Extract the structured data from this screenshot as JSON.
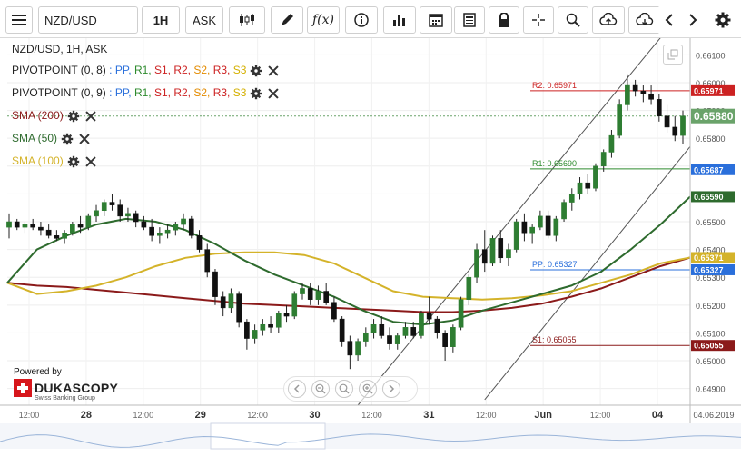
{
  "toolbar": {
    "instrument": "NZD/USD",
    "timeframe": "1H",
    "side": "ASK"
  },
  "chart_data": {
    "type": "candlestick",
    "title": "NZD/USD, 1H, ASK",
    "y_range": [
      0.6484,
      0.6616
    ],
    "y_ticks": [
      "0.66100",
      "0.66000",
      "0.65900",
      "0.65800",
      "0.65700",
      "0.65600",
      "0.65500",
      "0.65400",
      "0.65300",
      "0.65200",
      "0.65100",
      "0.65000",
      "0.64900"
    ],
    "x_ticks": [
      "12:00",
      "28",
      "12:00",
      "29",
      "12:00",
      "30",
      "12:00",
      "31",
      "12:00",
      "Jun",
      "12:00",
      "04"
    ],
    "x_end_label": "04.06.2019",
    "indicators": [
      {
        "name": "PIVOTPOINT (0, 8)",
        "components": [
          "PP",
          "R1",
          "S1",
          "R2",
          "S2",
          "R3",
          "S3"
        ]
      },
      {
        "name": "PIVOTPOINT (0, 9)",
        "components": [
          "PP",
          "R1",
          "S1",
          "R2",
          "S2",
          "R3",
          "S3"
        ]
      },
      {
        "name": "SMA (200)",
        "color": "#8b1a1a"
      },
      {
        "name": "SMA (50)",
        "color": "#2e6b2e"
      },
      {
        "name": "SMA (100)",
        "color": "#d4b32a"
      }
    ],
    "component_colors": [
      "#2a6fdb",
      "#2e8b2e",
      "#cc2222",
      "#cc2222",
      "#e38b00",
      "#cc2222",
      "#d4b000"
    ],
    "pivot_levels": [
      {
        "label": "R2: 0.65971",
        "value": 0.65971,
        "color": "#cc2222"
      },
      {
        "label": "R1: 0.65690",
        "value": 0.6569,
        "color": "#2e8b2e"
      },
      {
        "label": "PP: 0.65327",
        "value": 0.65327,
        "color": "#2a6fdb"
      },
      {
        "label": "S1: 0.65055",
        "value": 0.65055,
        "color": "#8b1a1a"
      }
    ],
    "price_tags": [
      {
        "text": "0.65971",
        "value": 0.65971,
        "bg": "#cc2222"
      },
      {
        "text": "0.65880",
        "value": 0.6588,
        "bg": "#6aa36a"
      },
      {
        "text": "0.65687",
        "value": 0.65687,
        "bg": "#2a6fdb"
      },
      {
        "text": "0.65590",
        "value": 0.6559,
        "bg": "#2e6b2e"
      },
      {
        "text": "0.65371",
        "value": 0.65371,
        "bg": "#d4b32a"
      },
      {
        "text": "0.65327",
        "value": 0.65327,
        "bg": "#2a6fdb"
      },
      {
        "text": "0.65055",
        "value": 0.65055,
        "bg": "#8b1a1a"
      }
    ],
    "current_price": 0.6588,
    "sma200": [
      0.6528,
      0.6527,
      0.65265,
      0.65255,
      0.65245,
      0.65235,
      0.65225,
      0.65215,
      0.65205,
      0.652,
      0.65195,
      0.6519,
      0.65185,
      0.6518,
      0.65175,
      0.65175,
      0.6518,
      0.6519,
      0.65205,
      0.6523,
      0.6526,
      0.653,
      0.6534,
      0.65371
    ],
    "sma100": [
      0.6528,
      0.6524,
      0.6525,
      0.6527,
      0.653,
      0.6534,
      0.6537,
      0.65385,
      0.6539,
      0.6539,
      0.6538,
      0.6535,
      0.653,
      0.6525,
      0.6523,
      0.65225,
      0.6522,
      0.65225,
      0.65235,
      0.6525,
      0.6528,
      0.6531,
      0.6535,
      0.65371
    ],
    "sma50": [
      0.6528,
      0.654,
      0.6545,
      0.6549,
      0.6551,
      0.655,
      0.6547,
      0.6542,
      0.6536,
      0.6531,
      0.6527,
      0.6523,
      0.6518,
      0.6514,
      0.6513,
      0.65145,
      0.6518,
      0.6521,
      0.6524,
      0.6527,
      0.6532,
      0.654,
      0.6549,
      0.6559
    ],
    "candles": [
      [
        0.6548,
        0.6553,
        0.6544,
        0.655
      ],
      [
        0.655,
        0.6551,
        0.6547,
        0.6548
      ],
      [
        0.6548,
        0.655,
        0.6546,
        0.6549
      ],
      [
        0.6549,
        0.6551,
        0.6547,
        0.6548
      ],
      [
        0.6548,
        0.655,
        0.6545,
        0.6547
      ],
      [
        0.6547,
        0.6549,
        0.6544,
        0.6545
      ],
      [
        0.6545,
        0.6547,
        0.6543,
        0.6544
      ],
      [
        0.6544,
        0.6547,
        0.6542,
        0.6546
      ],
      [
        0.6546,
        0.655,
        0.6545,
        0.6549
      ],
      [
        0.6549,
        0.6552,
        0.6546,
        0.6548
      ],
      [
        0.6548,
        0.6553,
        0.6547,
        0.6552
      ],
      [
        0.6552,
        0.6556,
        0.655,
        0.6554
      ],
      [
        0.6554,
        0.6558,
        0.6552,
        0.6557
      ],
      [
        0.6557,
        0.656,
        0.6554,
        0.6556
      ],
      [
        0.6556,
        0.6558,
        0.655,
        0.6552
      ],
      [
        0.6552,
        0.6555,
        0.655,
        0.6553
      ],
      [
        0.6553,
        0.6554,
        0.6548,
        0.655
      ],
      [
        0.655,
        0.6552,
        0.6547,
        0.6548
      ],
      [
        0.6548,
        0.6551,
        0.6543,
        0.6545
      ],
      [
        0.6545,
        0.6548,
        0.6542,
        0.6546
      ],
      [
        0.6546,
        0.6549,
        0.6544,
        0.6547
      ],
      [
        0.6547,
        0.655,
        0.6545,
        0.6549
      ],
      [
        0.6549,
        0.6553,
        0.6547,
        0.6551
      ],
      [
        0.6551,
        0.6552,
        0.6544,
        0.6545
      ],
      [
        0.6545,
        0.6547,
        0.6539,
        0.654
      ],
      [
        0.654,
        0.6542,
        0.653,
        0.6532
      ],
      [
        0.6532,
        0.6533,
        0.652,
        0.6523
      ],
      [
        0.6523,
        0.6525,
        0.6516,
        0.6519
      ],
      [
        0.6519,
        0.6526,
        0.6517,
        0.6524
      ],
      [
        0.6524,
        0.6525,
        0.6512,
        0.6514
      ],
      [
        0.6514,
        0.6515,
        0.6504,
        0.6508
      ],
      [
        0.6508,
        0.6513,
        0.6506,
        0.6511
      ],
      [
        0.6511,
        0.6515,
        0.6509,
        0.6513
      ],
      [
        0.6513,
        0.6516,
        0.651,
        0.6512
      ],
      [
        0.6512,
        0.6518,
        0.651,
        0.6517
      ],
      [
        0.6517,
        0.652,
        0.6514,
        0.6516
      ],
      [
        0.6516,
        0.6525,
        0.6515,
        0.6524
      ],
      [
        0.6524,
        0.6528,
        0.6522,
        0.6526
      ],
      [
        0.6526,
        0.6528,
        0.652,
        0.6522
      ],
      [
        0.6522,
        0.6527,
        0.652,
        0.6525
      ],
      [
        0.6525,
        0.6528,
        0.652,
        0.6521
      ],
      [
        0.6521,
        0.6523,
        0.6514,
        0.6515
      ],
      [
        0.6515,
        0.6516,
        0.6505,
        0.6507
      ],
      [
        0.6507,
        0.6509,
        0.6497,
        0.6502
      ],
      [
        0.6502,
        0.6508,
        0.65,
        0.6507
      ],
      [
        0.6507,
        0.6512,
        0.6505,
        0.651
      ],
      [
        0.651,
        0.6515,
        0.6508,
        0.6513
      ],
      [
        0.6513,
        0.6516,
        0.6508,
        0.6509
      ],
      [
        0.6509,
        0.6512,
        0.6504,
        0.6506
      ],
      [
        0.6506,
        0.651,
        0.6504,
        0.6509
      ],
      [
        0.6509,
        0.6514,
        0.6508,
        0.6512
      ],
      [
        0.6512,
        0.6514,
        0.6508,
        0.6509
      ],
      [
        0.6509,
        0.6518,
        0.6508,
        0.6517
      ],
      [
        0.6517,
        0.6523,
        0.6513,
        0.6515
      ],
      [
        0.6515,
        0.6516,
        0.6508,
        0.651
      ],
      [
        0.651,
        0.6511,
        0.65,
        0.6505
      ],
      [
        0.6505,
        0.6513,
        0.6503,
        0.6512
      ],
      [
        0.6512,
        0.6523,
        0.6511,
        0.6522
      ],
      [
        0.6522,
        0.6531,
        0.652,
        0.653
      ],
      [
        0.653,
        0.6542,
        0.6528,
        0.654
      ],
      [
        0.654,
        0.6547,
        0.6532,
        0.6535
      ],
      [
        0.6535,
        0.6545,
        0.6534,
        0.6544
      ],
      [
        0.6544,
        0.6547,
        0.6535,
        0.6537
      ],
      [
        0.6537,
        0.6542,
        0.6534,
        0.654
      ],
      [
        0.654,
        0.6551,
        0.6539,
        0.655
      ],
      [
        0.655,
        0.6553,
        0.6543,
        0.6546
      ],
      [
        0.6546,
        0.6549,
        0.6542,
        0.6548
      ],
      [
        0.6548,
        0.6554,
        0.6547,
        0.6552
      ],
      [
        0.6552,
        0.6554,
        0.6544,
        0.6545
      ],
      [
        0.6545,
        0.6552,
        0.6543,
        0.6551
      ],
      [
        0.6551,
        0.6558,
        0.655,
        0.6557
      ],
      [
        0.6557,
        0.6562,
        0.6554,
        0.656
      ],
      [
        0.656,
        0.6566,
        0.6558,
        0.6564
      ],
      [
        0.6564,
        0.6567,
        0.656,
        0.6562
      ],
      [
        0.6562,
        0.6571,
        0.6561,
        0.657
      ],
      [
        0.657,
        0.6576,
        0.6568,
        0.6575
      ],
      [
        0.6575,
        0.6583,
        0.6573,
        0.6581
      ],
      [
        0.6581,
        0.6594,
        0.658,
        0.6592
      ],
      [
        0.6592,
        0.6603,
        0.659,
        0.6599
      ],
      [
        0.6599,
        0.6601,
        0.6595,
        0.6597
      ],
      [
        0.6597,
        0.6599,
        0.6593,
        0.6596
      ],
      [
        0.6596,
        0.6599,
        0.6592,
        0.6594
      ],
      [
        0.6594,
        0.6596,
        0.6586,
        0.6588
      ],
      [
        0.6588,
        0.6592,
        0.6582,
        0.6584
      ],
      [
        0.6584,
        0.6588,
        0.6579,
        0.6581
      ],
      [
        0.6581,
        0.659,
        0.6578,
        0.6588
      ]
    ]
  },
  "powered": {
    "label": "Powered by",
    "brand": "DUKASCOPY",
    "subtitle": "Swiss Banking Group"
  }
}
